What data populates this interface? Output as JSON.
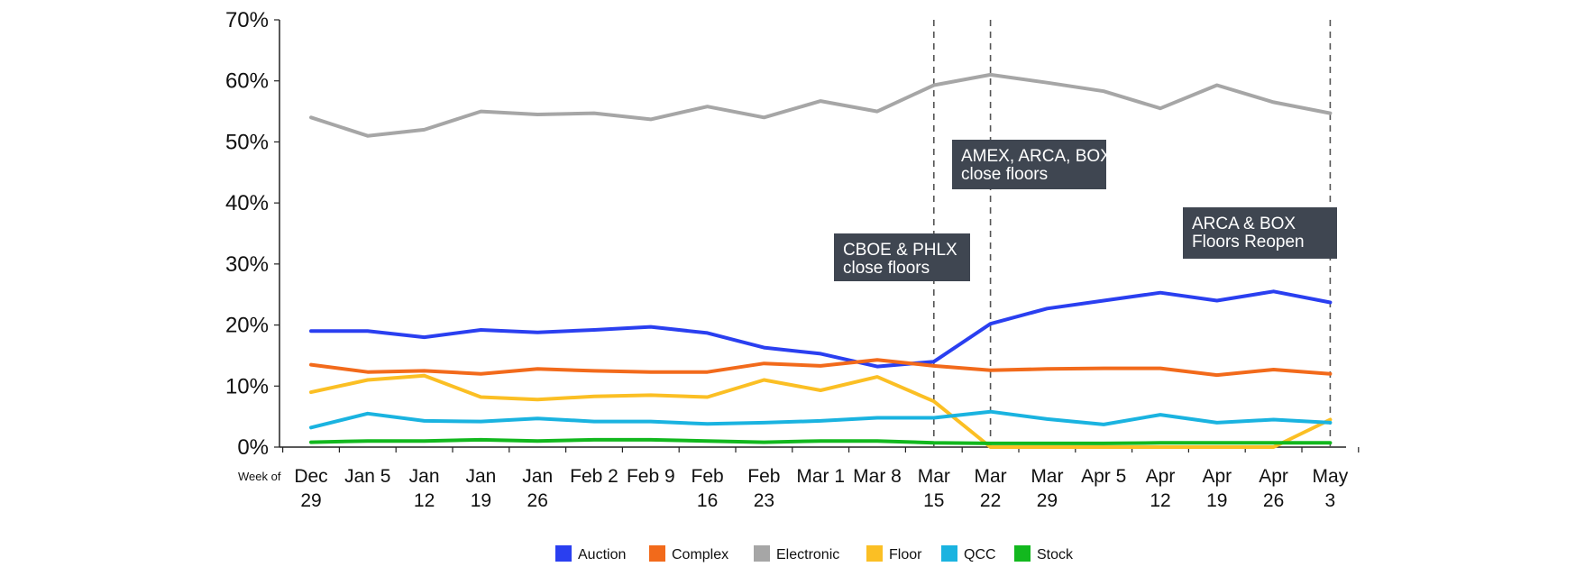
{
  "chart_data": {
    "type": "line",
    "x_axis_prefix": "Week of",
    "categories": [
      [
        "Dec",
        "29"
      ],
      [
        "Jan 5"
      ],
      [
        "Jan",
        "12"
      ],
      [
        "Jan",
        "19"
      ],
      [
        "Jan",
        "26"
      ],
      [
        "Feb 2"
      ],
      [
        "Feb 9"
      ],
      [
        "Feb",
        "16"
      ],
      [
        "Feb",
        "23"
      ],
      [
        "Mar 1"
      ],
      [
        "Mar 8"
      ],
      [
        "Mar",
        "15"
      ],
      [
        "Mar",
        "22"
      ],
      [
        "Mar",
        "29"
      ],
      [
        "Apr 5"
      ],
      [
        "Apr",
        "12"
      ],
      [
        "Apr",
        "19"
      ],
      [
        "Apr",
        "26"
      ],
      [
        "May",
        "3"
      ]
    ],
    "y_ticks": [
      "0%",
      "10%",
      "20%",
      "30%",
      "40%",
      "50%",
      "60%",
      "70%"
    ],
    "ylim": [
      0,
      70
    ],
    "grid": false,
    "legend_position": "bottom",
    "series": [
      {
        "name": "Auction",
        "color": "#2A3FF0",
        "values": [
          19.0,
          19.0,
          18.0,
          19.2,
          18.8,
          19.2,
          19.7,
          18.7,
          16.3,
          15.3,
          13.2,
          14.0,
          20.2,
          22.7,
          24.0,
          25.3,
          24.0,
          25.5,
          23.7
        ]
      },
      {
        "name": "Complex",
        "color": "#F26A1B",
        "values": [
          13.5,
          12.3,
          12.5,
          12.0,
          12.8,
          12.5,
          12.3,
          12.3,
          13.7,
          13.3,
          14.3,
          13.3,
          12.6,
          12.8,
          12.9,
          12.9,
          11.8,
          12.7,
          12.0
        ]
      },
      {
        "name": "Electronic",
        "color": "#A6A6A6",
        "values": [
          54.0,
          51.0,
          52.0,
          55.0,
          54.5,
          54.7,
          53.7,
          55.8,
          54.0,
          56.7,
          55.0,
          59.3,
          61.0,
          59.7,
          58.3,
          55.5,
          59.3,
          56.5,
          54.7
        ]
      },
      {
        "name": "Floor",
        "color": "#FBBF24",
        "values": [
          9.0,
          11.0,
          11.7,
          8.2,
          7.8,
          8.3,
          8.5,
          8.2,
          11.0,
          9.3,
          11.5,
          7.5,
          0.0,
          0.0,
          0.0,
          0.0,
          0.0,
          0.0,
          4.5
        ]
      },
      {
        "name": "QCC",
        "color": "#1AB3E0",
        "values": [
          3.2,
          5.5,
          4.3,
          4.2,
          4.7,
          4.2,
          4.2,
          3.8,
          4.0,
          4.3,
          4.8,
          4.8,
          5.8,
          4.6,
          3.7,
          5.3,
          4.0,
          4.5,
          4.0
        ]
      },
      {
        "name": "Stock",
        "color": "#12B81E",
        "values": [
          0.8,
          1.0,
          1.0,
          1.2,
          1.0,
          1.2,
          1.2,
          1.0,
          0.8,
          1.0,
          1.0,
          0.7,
          0.6,
          0.6,
          0.6,
          0.7,
          0.7,
          0.7,
          0.7
        ]
      }
    ],
    "annotations": [
      {
        "lines": [
          "CBOE & PHLX",
          "close floors"
        ],
        "at_category_index": 11
      },
      {
        "lines": [
          "AMEX, ARCA, BOX",
          "close floors"
        ],
        "at_category_index": 12
      },
      {
        "lines": [
          "ARCA & BOX",
          "Floors Reopen"
        ],
        "at_category_index": 18
      }
    ]
  }
}
